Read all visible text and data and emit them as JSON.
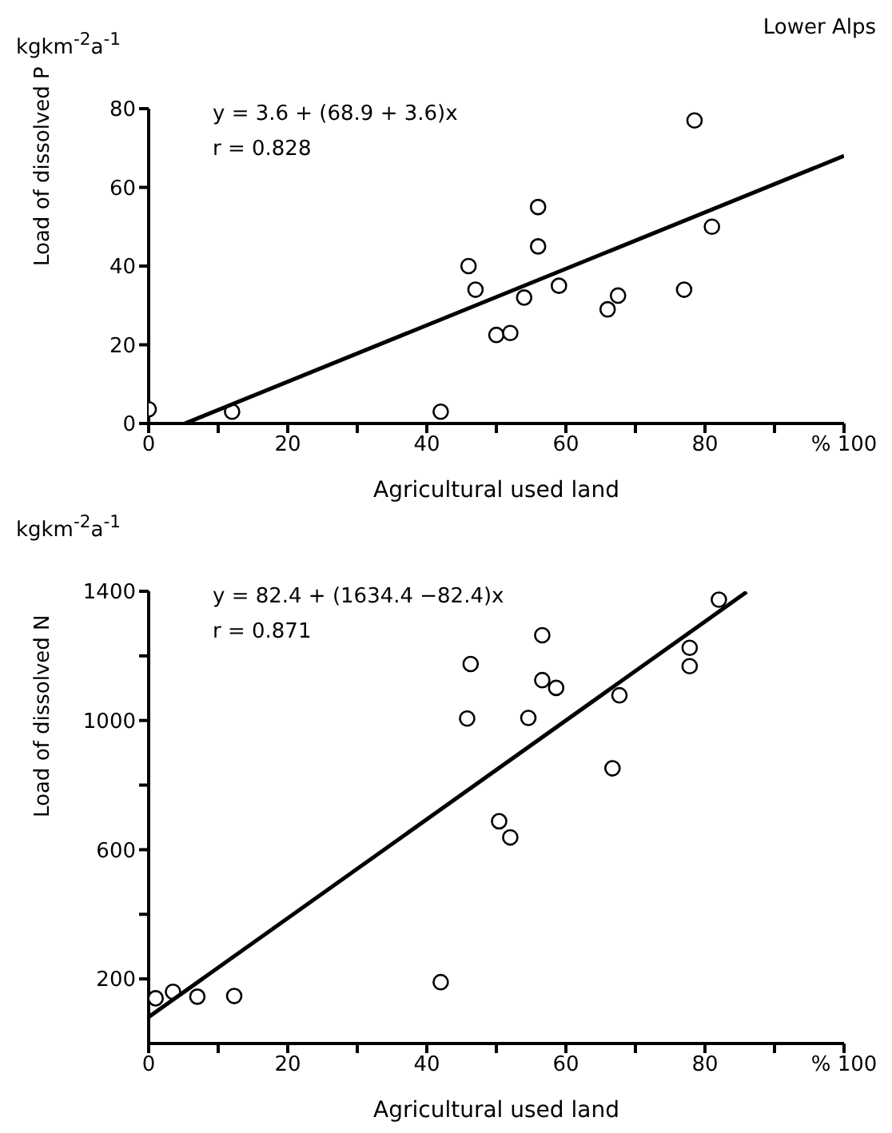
{
  "chart_data": [
    {
      "type": "scatter",
      "title": "Lower Alps",
      "xlabel": "Agricultural used land",
      "ylabel": "Load of dissolved P",
      "annotations": [
        "kgkm$^{-2}$a$^{-1}$",
        "y = 3.6 + (68.9 + 3.6)x",
        "r = 0.828"
      ],
      "series": [
        {
          "color": "#000000",
          "marker": "circle",
          "x": [
            0,
            12,
            42,
            46,
            47,
            50,
            52,
            54,
            56,
            56,
            59,
            66,
            67.5,
            77,
            78.5,
            81
          ],
          "values": [
            3.6,
            3,
            3,
            40,
            34,
            22.5,
            23,
            32,
            55,
            45,
            35,
            29,
            32.5,
            34,
            77,
            50
          ]
        },
        {
          "type": "line",
          "color": "#000000",
          "line_style": "solid",
          "x": [
            5.2,
            100
          ],
          "values": [
            0,
            68
          ]
        }
      ],
      "xlim": [
        0,
        100
      ],
      "xticks": [
        0,
        {
          "value": 10,
          "label": null
        },
        20,
        {
          "value": 30,
          "label": null
        },
        40,
        {
          "value": 50,
          "label": null
        },
        60,
        {
          "value": 70,
          "label": null
        },
        80,
        {
          "value": 90,
          "label": null
        },
        {
          "value": 100,
          "label": "% 100"
        }
      ],
      "ylim": [
        0,
        80
      ],
      "yticks": [
        0,
        20,
        40,
        60,
        80
      ],
      "grid": false,
      "legend": false
    },
    {
      "type": "scatter",
      "xlabel": "Agricultural used land",
      "ylabel": "Load of dissolved N",
      "annotations": [
        "kgkm$^{-2}$a$^{-1}$",
        "y = 82.4 + (1634.4 −82.4)x",
        "r = 0.871"
      ],
      "series": [
        {
          "color": "#000000",
          "marker": "circle",
          "x": [
            1,
            3.5,
            7,
            12.3,
            42,
            45.8,
            46.3,
            50.4,
            52,
            54.6,
            56.6,
            56.6,
            58.6,
            66.7,
            67.7,
            77.8,
            77.8,
            82
          ],
          "values": [
            140,
            160,
            145,
            147,
            190,
            1006,
            1175,
            688,
            638,
            1008,
            1264,
            1125,
            1101,
            852,
            1078,
            1225,
            1168,
            1374
          ]
        },
        {
          "type": "line",
          "color": "#000000",
          "line_style": "solid",
          "x": [
            0,
            86
          ],
          "values": [
            82,
            1398
          ]
        }
      ],
      "xlim": [
        0,
        100
      ],
      "xticks": [
        0,
        {
          "value": 10,
          "label": null
        },
        20,
        {
          "value": 30,
          "label": null
        },
        40,
        {
          "value": 50,
          "label": null
        },
        60,
        {
          "value": 70,
          "label": null
        },
        80,
        {
          "value": 90,
          "label": null
        },
        {
          "value": 100,
          "label": "% 100"
        }
      ],
      "ylim": [
        0,
        1400
      ],
      "yticks": [
        200,
        {
          "value": 400,
          "label": null
        },
        600,
        {
          "value": 800,
          "label": null
        },
        1000,
        {
          "value": 1200,
          "label": null
        },
        1400
      ],
      "grid": false,
      "legend": false
    }
  ]
}
